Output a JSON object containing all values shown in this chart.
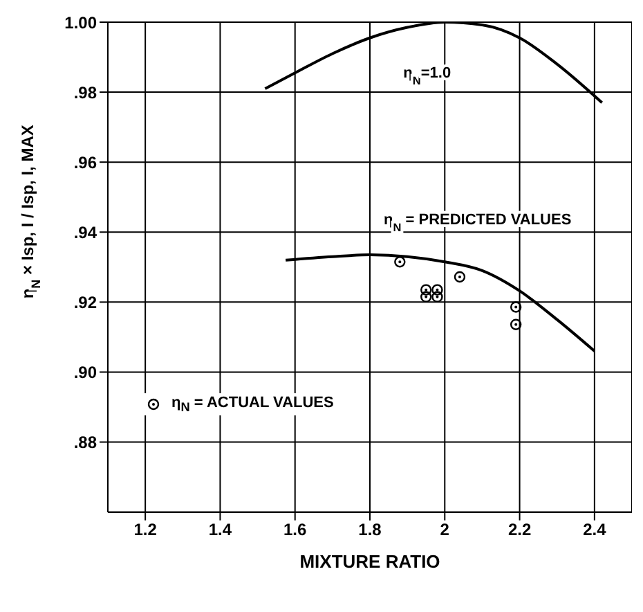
{
  "chart_data": {
    "type": "line",
    "xlabel": "MIXTURE RATIO",
    "ylabel": "η$_{N}$ × Isp, I / Isp, I, MAX",
    "xlim": [
      1.1,
      2.5
    ],
    "xticks": [
      1.2,
      1.4,
      1.6,
      1.8,
      2.0,
      2.2,
      2.4
    ],
    "ylim": [
      0.86,
      1.0
    ],
    "yticks": [
      {
        "value": 0.88,
        "label": ".88"
      },
      {
        "value": 0.9,
        "label": ".90"
      },
      {
        "value": 0.92,
        "label": ".92"
      },
      {
        "value": 0.94,
        "label": ".94"
      },
      {
        "value": 0.96,
        "label": ".96"
      },
      {
        "value": 0.98,
        "label": ".98"
      },
      {
        "value": 1.0,
        "label": "1.00"
      }
    ],
    "grid": true,
    "legend": "bottom left",
    "series": [
      {
        "name": "η$_{N}$=1.0",
        "marker": "none",
        "color": "#000000",
        "x": [
          1.52,
          1.6,
          1.7,
          1.8,
          1.9,
          2.0,
          2.1,
          2.2,
          2.3,
          2.42
        ],
        "values": [
          0.981,
          0.9855,
          0.991,
          0.9955,
          0.9985,
          1.0,
          0.9992,
          0.9955,
          0.988,
          0.977
        ]
      },
      {
        "name": "η$_{N}$ = PREDICTED VALUES",
        "marker": "none",
        "color": "#000000",
        "x": [
          1.575,
          1.7,
          1.8,
          1.9,
          2.0,
          2.1,
          2.2,
          2.3,
          2.4
        ],
        "values": [
          0.932,
          0.933,
          0.9335,
          0.933,
          0.9315,
          0.929,
          0.9232,
          0.915,
          0.906
        ]
      },
      {
        "name": "η$_{N}$ = ACTUAL VALUES",
        "type": "scatter",
        "marker": "circle",
        "color": "#000000",
        "x": [
          1.88,
          1.95,
          1.95,
          1.98,
          1.98,
          2.04,
          2.19,
          2.19
        ],
        "values": [
          0.9315,
          0.9235,
          0.9215,
          0.9235,
          0.9215,
          0.9272,
          0.9186,
          0.9136
        ]
      }
    ]
  }
}
